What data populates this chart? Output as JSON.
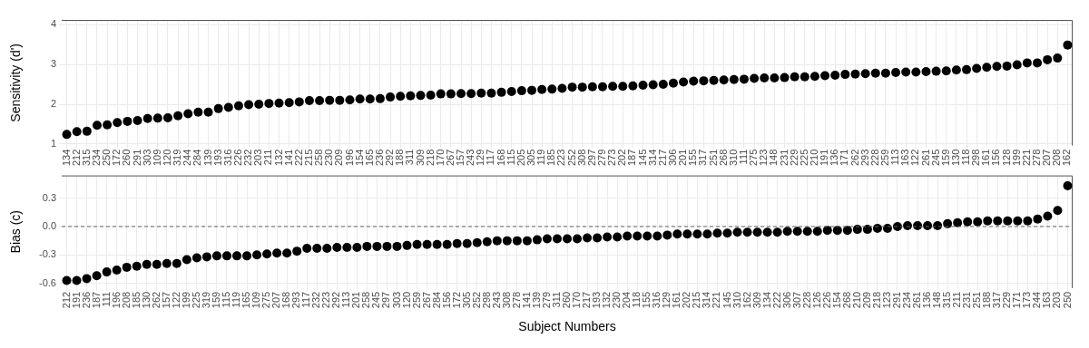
{
  "chart_data": [
    {
      "type": "scatter",
      "ylabel": "Sensitivity (d')",
      "color": "#000000",
      "marker": "circle",
      "grid": true,
      "ylim": [
        0.96,
        4.12
      ],
      "yticks": [
        1,
        2,
        3,
        4
      ],
      "categories": [
        "134",
        "212",
        "315",
        "234",
        "250",
        "172",
        "260",
        "291",
        "303",
        "109",
        "120",
        "319",
        "244",
        "284",
        "139",
        "193",
        "316",
        "226",
        "232",
        "203",
        "211",
        "132",
        "141",
        "222",
        "215",
        "258",
        "230",
        "209",
        "196",
        "154",
        "165",
        "236",
        "292",
        "188",
        "311",
        "309",
        "218",
        "170",
        "267",
        "157",
        "243",
        "129",
        "117",
        "168",
        "115",
        "205",
        "305",
        "119",
        "185",
        "223",
        "252",
        "308",
        "297",
        "279",
        "273",
        "202",
        "187",
        "145",
        "314",
        "217",
        "306",
        "201",
        "155",
        "317",
        "251",
        "268",
        "310",
        "111",
        "275",
        "123",
        "148",
        "231",
        "229",
        "225",
        "210",
        "191",
        "136",
        "171",
        "262",
        "293",
        "228",
        "259",
        "113",
        "163",
        "122",
        "261",
        "245",
        "159",
        "130",
        "118",
        "298",
        "161",
        "156",
        "128",
        "199",
        "221",
        "278",
        "207",
        "208",
        "162"
      ],
      "values": [
        1.24,
        1.31,
        1.32,
        1.47,
        1.48,
        1.54,
        1.57,
        1.59,
        1.64,
        1.65,
        1.66,
        1.71,
        1.76,
        1.8,
        1.8,
        1.89,
        1.92,
        1.96,
        1.99,
        2.0,
        2.02,
        2.03,
        2.04,
        2.06,
        2.09,
        2.09,
        2.1,
        2.1,
        2.11,
        2.13,
        2.13,
        2.14,
        2.18,
        2.2,
        2.21,
        2.22,
        2.23,
        2.26,
        2.26,
        2.27,
        2.27,
        2.28,
        2.28,
        2.3,
        2.32,
        2.34,
        2.35,
        2.37,
        2.38,
        2.4,
        2.43,
        2.43,
        2.44,
        2.44,
        2.45,
        2.45,
        2.46,
        2.48,
        2.49,
        2.5,
        2.53,
        2.56,
        2.58,
        2.59,
        2.6,
        2.61,
        2.62,
        2.63,
        2.65,
        2.66,
        2.66,
        2.67,
        2.69,
        2.69,
        2.7,
        2.72,
        2.73,
        2.75,
        2.76,
        2.77,
        2.78,
        2.78,
        2.8,
        2.81,
        2.81,
        2.82,
        2.83,
        2.84,
        2.86,
        2.87,
        2.9,
        2.93,
        2.95,
        2.96,
        2.99,
        3.04,
        3.04,
        3.12,
        3.16,
        3.49
      ]
    },
    {
      "type": "scatter",
      "ylabel": "Bias (c)",
      "xlabel": "Subject Numbers",
      "color": "#000000",
      "marker": "circle",
      "grid": true,
      "ylim": [
        -0.65,
        0.54
      ],
      "yticks": [
        {
          "value": -0.6,
          "label": "-0.6"
        },
        {
          "value": -0.3,
          "label": "-0.3"
        },
        {
          "value": 0,
          "label": "0.0"
        },
        {
          "value": 0.3,
          "label": "0.3"
        }
      ],
      "ref_lines": [
        {
          "axis": "y",
          "value": 0,
          "color": "#666666",
          "line_style": "dashed"
        }
      ],
      "categories": [
        "212",
        "191",
        "236",
        "187",
        "111",
        "196",
        "208",
        "185",
        "130",
        "262",
        "157",
        "122",
        "199",
        "225",
        "319",
        "159",
        "115",
        "119",
        "165",
        "109",
        "275",
        "207",
        "168",
        "293",
        "117",
        "232",
        "223",
        "292",
        "113",
        "201",
        "258",
        "245",
        "297",
        "303",
        "120",
        "259",
        "267",
        "284",
        "156",
        "172",
        "305",
        "252",
        "298",
        "243",
        "308",
        "278",
        "141",
        "139",
        "279",
        "311",
        "260",
        "170",
        "217",
        "193",
        "132",
        "230",
        "204",
        "118",
        "155",
        "316",
        "129",
        "161",
        "202",
        "215",
        "314",
        "221",
        "145",
        "310",
        "162",
        "309",
        "134",
        "222",
        "306",
        "307",
        "228",
        "126",
        "226",
        "154",
        "268",
        "210",
        "209",
        "218",
        "123",
        "291",
        "234",
        "261",
        "136",
        "148",
        "315",
        "211",
        "231",
        "251",
        "188",
        "317",
        "229",
        "171",
        "173",
        "244",
        "163",
        "203",
        "250"
      ],
      "values": [
        -0.57,
        -0.57,
        -0.55,
        -0.52,
        -0.48,
        -0.46,
        -0.43,
        -0.42,
        -0.4,
        -0.4,
        -0.39,
        -0.39,
        -0.35,
        -0.33,
        -0.32,
        -0.31,
        -0.31,
        -0.31,
        -0.31,
        -0.3,
        -0.29,
        -0.28,
        -0.28,
        -0.26,
        -0.23,
        -0.23,
        -0.23,
        -0.22,
        -0.22,
        -0.22,
        -0.21,
        -0.21,
        -0.21,
        -0.21,
        -0.2,
        -0.19,
        -0.19,
        -0.19,
        -0.19,
        -0.18,
        -0.18,
        -0.17,
        -0.16,
        -0.15,
        -0.15,
        -0.15,
        -0.15,
        -0.14,
        -0.13,
        -0.13,
        -0.13,
        -0.13,
        -0.12,
        -0.12,
        -0.11,
        -0.11,
        -0.1,
        -0.1,
        -0.1,
        -0.1,
        -0.09,
        -0.08,
        -0.08,
        -0.08,
        -0.08,
        -0.07,
        -0.07,
        -0.06,
        -0.06,
        -0.06,
        -0.06,
        -0.06,
        -0.05,
        -0.05,
        -0.05,
        -0.05,
        -0.04,
        -0.04,
        -0.04,
        -0.03,
        -0.03,
        -0.02,
        -0.02,
        0.0,
        0.01,
        0.01,
        0.01,
        0.01,
        0.03,
        0.04,
        0.05,
        0.05,
        0.06,
        0.06,
        0.06,
        0.06,
        0.06,
        0.08,
        0.11,
        0.17,
        0.43
      ]
    }
  ]
}
